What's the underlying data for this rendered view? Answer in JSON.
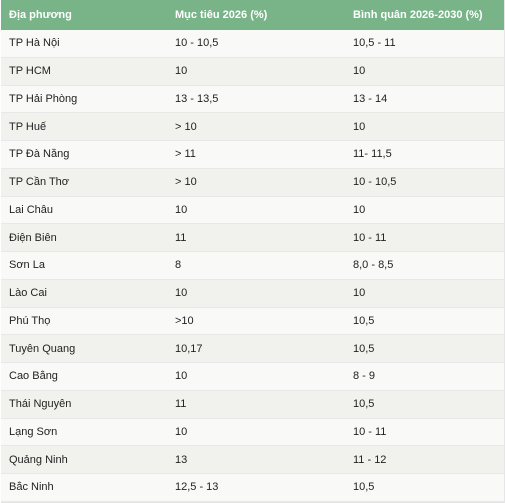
{
  "table": {
    "headers": [
      "Địa phương",
      "Mục tiêu 2026 (%)",
      "Bình quân 2026-2030 (%)"
    ],
    "rows": [
      [
        "TP Hà Nội",
        "10 - 10,5",
        "10,5 - 11"
      ],
      [
        "TP HCM",
        "10",
        "10"
      ],
      [
        "TP Hải Phòng",
        "13 - 13,5",
        "13 - 14"
      ],
      [
        "TP Huế",
        "> 10",
        "10"
      ],
      [
        "TP Đà Nẵng",
        "> 11",
        "11- 11,5"
      ],
      [
        "TP Cần Thơ",
        "> 10",
        "10 - 10,5"
      ],
      [
        "Lai Châu",
        "10",
        "10"
      ],
      [
        "Điện Biên",
        "11",
        "10 - 11"
      ],
      [
        "Sơn La",
        "8",
        "8,0 - 8,5"
      ],
      [
        "Lào Cai",
        "10",
        "10"
      ],
      [
        "Phú Thọ",
        ">10",
        "10,5"
      ],
      [
        "Tuyên Quang",
        "10,17",
        "10,5"
      ],
      [
        "Cao Bằng",
        "10",
        "8 - 9"
      ],
      [
        "Thái Nguyên",
        "11",
        "10,5"
      ],
      [
        "Lạng Sơn",
        "10",
        "10 - 11"
      ],
      [
        "Quảng Ninh",
        "13",
        "11 - 12"
      ],
      [
        "Bắc Ninh",
        "12,5 - 13",
        "10,5"
      ]
    ]
  },
  "colors": {
    "header_bg": "#79b489",
    "row_odd": "#f9f9f7",
    "row_even": "#f1f1ee"
  }
}
